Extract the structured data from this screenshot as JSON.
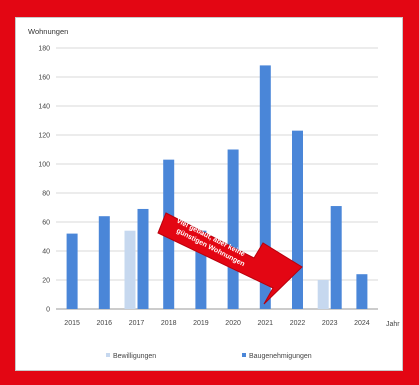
{
  "chart_data": {
    "type": "bar",
    "ylabel": "Wohnungen",
    "xlabel": "Jahr",
    "ylim": [
      0,
      180
    ],
    "ytick_step": 20,
    "grid": true,
    "legend_position": "bottom",
    "categories": [
      "2015",
      "2016",
      "2017",
      "2018",
      "2019",
      "2020",
      "2021",
      "2022",
      "2023",
      "2024"
    ],
    "series": [
      {
        "name": "Bewilligungen",
        "color": "#c6d8ef",
        "values": [
          null,
          null,
          54,
          null,
          null,
          null,
          null,
          null,
          20,
          null
        ]
      },
      {
        "name": "Baugenehmigungen",
        "color": "#4a86d8",
        "values": [
          52,
          64,
          69,
          103,
          54,
          110,
          168,
          123,
          71,
          24
        ]
      }
    ],
    "annotation": {
      "text_line1": "Viel gebaut, aber keine",
      "text_line2": "günstigen Wohnungen",
      "color": "#e30613"
    }
  }
}
